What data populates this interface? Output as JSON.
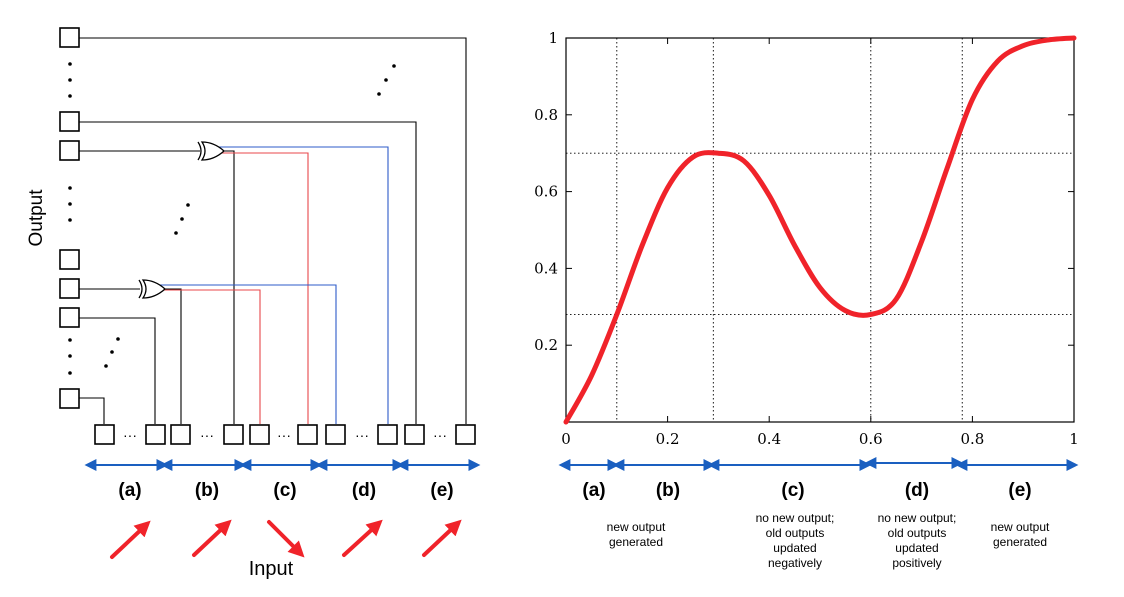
{
  "diagram": {
    "y_axis_label": "Output",
    "x_axis_label": "Input",
    "segments": [
      "(a)",
      "(b)",
      "(c)",
      "(d)",
      "(e)"
    ],
    "ellipsis": "···"
  },
  "plot": {
    "segments": [
      "(a)",
      "(b)",
      "(c)",
      "(d)",
      "(e)"
    ],
    "descriptions": [
      "",
      "new output\ngenerated",
      "no new output;\nold outputs\nupdated\nnegatively",
      "no new output;\nold outputs\nupdated\npositively",
      "new output\ngenerated"
    ],
    "colors": {
      "curve": "#f0232a",
      "arrow": "#1a5fc0",
      "xor_red": "#e8474b",
      "xor_blue": "#2d5bc8"
    }
  },
  "chart_data": {
    "type": "line",
    "title": "",
    "xlabel": "",
    "ylabel": "",
    "xlim": [
      0,
      1
    ],
    "ylim": [
      0,
      1
    ],
    "x_ticks": [
      "0",
      "0.2",
      "0.4",
      "0.6",
      "0.8",
      "1"
    ],
    "y_ticks": [
      "0.2",
      "0.4",
      "0.6",
      "0.8",
      "1"
    ],
    "grid": "dotted",
    "vertical_markers": [
      0.1,
      0.29,
      0.6,
      0.78
    ],
    "horizontal_markers": [
      0.7,
      0.28
    ],
    "series": [
      {
        "x": [
          0,
          0.05,
          0.1,
          0.15,
          0.2,
          0.25,
          0.3,
          0.35,
          0.4,
          0.45,
          0.5,
          0.55,
          0.6,
          0.65,
          0.7,
          0.75,
          0.8,
          0.85,
          0.9,
          0.95,
          1.0
        ],
        "values": [
          0,
          0.12,
          0.28,
          0.46,
          0.61,
          0.69,
          0.7,
          0.68,
          0.59,
          0.46,
          0.35,
          0.29,
          0.28,
          0.32,
          0.47,
          0.66,
          0.84,
          0.94,
          0.98,
          0.995,
          1.0
        ]
      }
    ]
  }
}
